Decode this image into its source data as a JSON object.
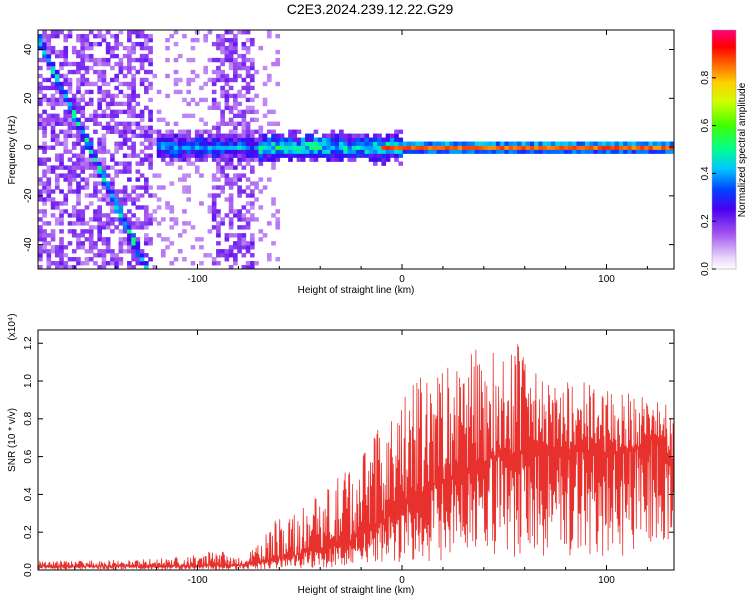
{
  "title": "C2E3.2024.239.12.22.G29",
  "chart_data": [
    {
      "type": "heatmap",
      "xlabel": "Height of straight line (km)",
      "ylabel": "Frequency (Hz)",
      "xlim": [
        -178,
        133
      ],
      "ylim": [
        -50,
        48
      ],
      "x_ticks": [
        -100,
        0,
        100
      ],
      "y_ticks": [
        -40,
        -20,
        0,
        20,
        40
      ],
      "colorbar": {
        "label": "Normalized spectral amplitude",
        "range": [
          0,
          1
        ],
        "ticks": [
          0.0,
          0.2,
          0.4,
          0.6,
          0.8
        ],
        "tick_labels": [
          "0.0",
          "0.2",
          "0.4",
          "0.6",
          "0.8"
        ]
      },
      "features": {
        "descending_streak": {
          "from": [
            -178,
            45
          ],
          "to": [
            -125,
            -50
          ]
        },
        "horizontal_streak": {
          "frequency": 0,
          "x_range": [
            -120,
            133
          ]
        },
        "noise_bands": [
          [
            -178,
            -122
          ],
          [
            -92,
            -72
          ]
        ]
      }
    },
    {
      "type": "line",
      "xlabel": "Height of straight line (km)",
      "ylabel": "SNR (10 * v/v)",
      "y_multiplier": "(x10⁴)",
      "xlim": [
        -178,
        133
      ],
      "ylim": [
        0,
        1.27
      ],
      "x_ticks": [
        -100,
        0,
        100
      ],
      "y_ticks": [
        0.0,
        0.2,
        0.4,
        0.6,
        0.8,
        1.0,
        1.2
      ],
      "y_tick_labels": [
        "0.0",
        "0.2",
        "0.4",
        "0.6",
        "0.8",
        "1.0",
        "1.2"
      ],
      "color": "#e8302c",
      "envelope": {
        "x": [
          -178,
          -150,
          -120,
          -100,
          -90,
          -85,
          -75,
          -65,
          -55,
          -45,
          -35,
          -25,
          -15,
          -5,
          5,
          15,
          25,
          35,
          45,
          55,
          65,
          75,
          85,
          95,
          105,
          115,
          125,
          133
        ],
        "baseline": [
          0.02,
          0.02,
          0.02,
          0.02,
          0.03,
          0.02,
          0.03,
          0.05,
          0.07,
          0.1,
          0.13,
          0.16,
          0.22,
          0.3,
          0.38,
          0.45,
          0.5,
          0.55,
          0.6,
          0.62,
          0.63,
          0.64,
          0.64,
          0.62,
          0.62,
          0.65,
          0.7,
          0.55
        ],
        "peak": [
          0.05,
          0.05,
          0.06,
          0.08,
          0.12,
          0.07,
          0.08,
          0.25,
          0.3,
          0.4,
          0.45,
          0.58,
          0.7,
          0.85,
          1.0,
          1.05,
          1.1,
          1.2,
          1.15,
          1.25,
          1.05,
          1.0,
          1.0,
          1.0,
          0.95,
          0.95,
          0.9,
          0.85
        ]
      }
    }
  ]
}
